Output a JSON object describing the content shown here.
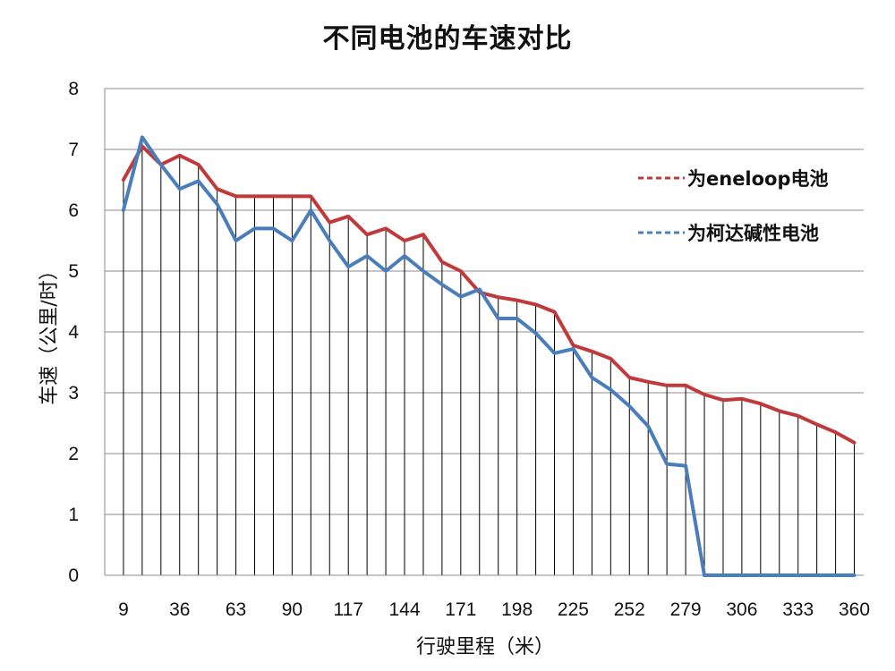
{
  "chart_data": {
    "type": "line",
    "title": "不同电池的车速对比",
    "xlabel": "行驶里程（米）",
    "ylabel": "车速（公里/时）",
    "ylim": [
      0,
      8
    ],
    "y_ticks": [
      "0",
      "1",
      "2",
      "3",
      "4",
      "5",
      "6",
      "7",
      "8"
    ],
    "x_tick_labels": [
      "9",
      "36",
      "63",
      "90",
      "117",
      "144",
      "171",
      "198",
      "225",
      "252",
      "279",
      "306",
      "333",
      "360"
    ],
    "x": [
      9,
      18,
      27,
      36,
      45,
      54,
      63,
      72,
      81,
      90,
      99,
      108,
      117,
      126,
      135,
      144,
      153,
      162,
      171,
      180,
      189,
      198,
      207,
      216,
      225,
      234,
      243,
      252,
      261,
      270,
      279,
      288,
      297,
      306,
      315,
      324,
      333,
      342,
      351,
      360
    ],
    "grid": "horizontal major gridlines; vertical drop line at every data point",
    "legend_position": "right",
    "series": [
      {
        "name": "为eneloop电池",
        "color": "#c0393b",
        "values": [
          6.5,
          7.05,
          6.75,
          6.9,
          6.75,
          6.35,
          6.23,
          6.23,
          6.23,
          6.23,
          6.23,
          5.8,
          5.9,
          5.6,
          5.7,
          5.5,
          5.6,
          5.15,
          5.0,
          4.65,
          4.57,
          4.52,
          4.45,
          4.33,
          3.78,
          3.68,
          3.56,
          3.25,
          3.18,
          3.12,
          3.12,
          2.97,
          2.88,
          2.9,
          2.82,
          2.7,
          2.62,
          2.48,
          2.35,
          2.18
        ]
      },
      {
        "name": "为柯达碱性电池",
        "color": "#4a7ebb",
        "values": [
          6.0,
          7.2,
          6.75,
          6.35,
          6.48,
          6.1,
          5.5,
          5.7,
          5.7,
          5.5,
          6.0,
          5.5,
          5.07,
          5.25,
          5.0,
          5.25,
          5.0,
          4.78,
          4.58,
          4.7,
          4.22,
          4.22,
          3.98,
          3.65,
          3.72,
          3.25,
          3.05,
          2.78,
          2.45,
          1.83,
          1.8,
          0,
          0,
          0,
          0,
          0,
          0,
          0,
          0,
          0
        ]
      }
    ]
  }
}
